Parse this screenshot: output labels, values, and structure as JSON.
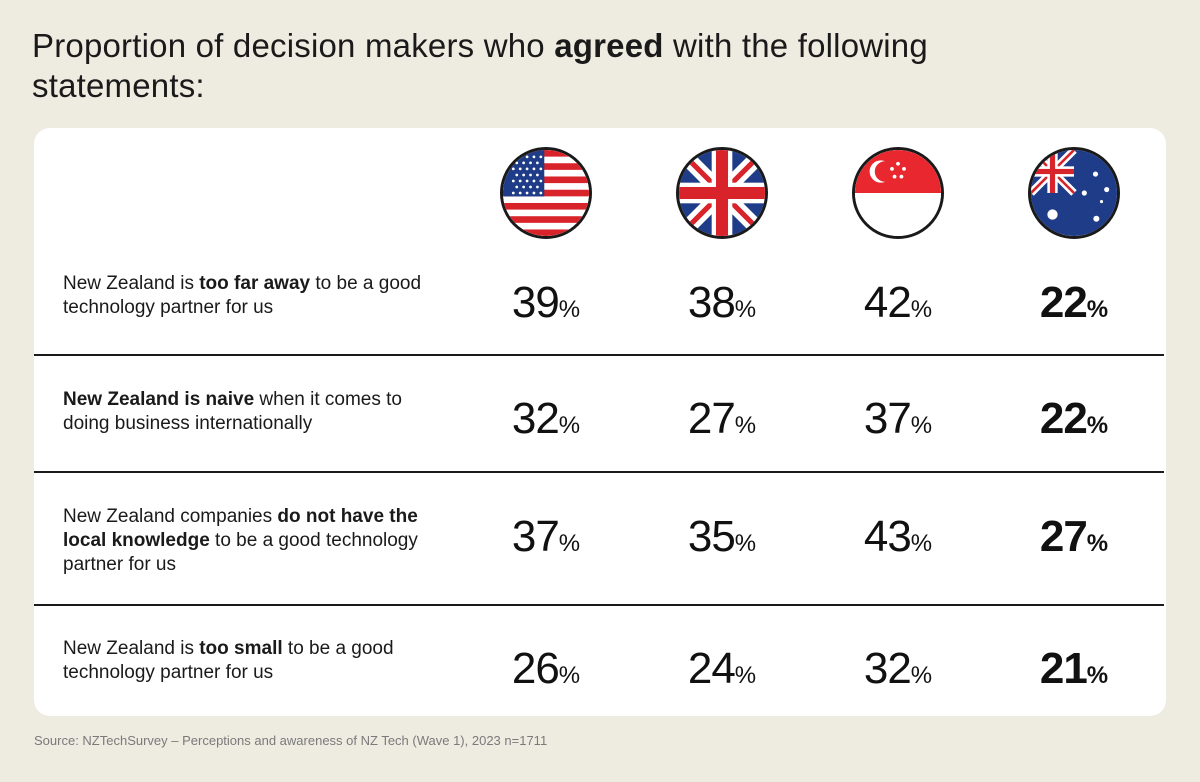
{
  "title": {
    "prefix": "Proportion of decision makers who ",
    "bold": "agreed",
    "suffix": " with the following statements:"
  },
  "columns": [
    {
      "flag": "usa-flag-icon"
    },
    {
      "flag": "uk-flag-icon"
    },
    {
      "flag": "singapore-flag-icon"
    },
    {
      "flag": "australia-flag-icon"
    }
  ],
  "rows": [
    {
      "parts": [
        {
          "text": "New Zealand is ",
          "bold": false
        },
        {
          "text": "too far away",
          "bold": true
        },
        {
          "text": " to be a good technology partner for us",
          "bold": false
        }
      ],
      "values": [
        "39",
        "38",
        "42",
        "22"
      ]
    },
    {
      "parts": [
        {
          "text": "New Zealand is naive",
          "bold": true
        },
        {
          "text": " when it comes to doing business internationally",
          "bold": false
        }
      ],
      "values": [
        "32",
        "27",
        "37",
        "22"
      ]
    },
    {
      "parts": [
        {
          "text": "New Zealand companies ",
          "bold": false
        },
        {
          "text": "do not have the local knowledge",
          "bold": true
        },
        {
          "text": " to be a good technology partner for us",
          "bold": false
        }
      ],
      "values": [
        "37",
        "35",
        "43",
        "27"
      ]
    },
    {
      "parts": [
        {
          "text": "New Zealand is ",
          "bold": false
        },
        {
          "text": "too small",
          "bold": true
        },
        {
          "text": " to be a good technology partner for us",
          "bold": false
        }
      ],
      "values": [
        "26",
        "24",
        "32",
        "21"
      ]
    }
  ],
  "pct_symbol": "%",
  "source": "Source: NZTechSurvey – Perceptions and awareness of NZ Tech (Wave 1), 2023 n=1711",
  "chart_data": {
    "type": "table",
    "title": "Proportion of decision makers who agreed with the following statements:",
    "columns": [
      "usa-flag-icon",
      "uk-flag-icon",
      "singapore-flag-icon",
      "australia-flag-icon"
    ],
    "rows": [
      {
        "label": "New Zealand is too far away to be a good technology partner for us",
        "values": [
          39,
          38,
          42,
          22
        ]
      },
      {
        "label": "New Zealand is naive when it comes to doing business internationally",
        "values": [
          32,
          27,
          37,
          22
        ]
      },
      {
        "label": "New Zealand companies do not have the local knowledge to be a good technology partner for us",
        "values": [
          37,
          35,
          43,
          27
        ]
      },
      {
        "label": "New Zealand is too small to be a good technology partner for us",
        "values": [
          26,
          24,
          32,
          21
        ]
      }
    ],
    "unit": "%",
    "highlight_column": 3
  }
}
